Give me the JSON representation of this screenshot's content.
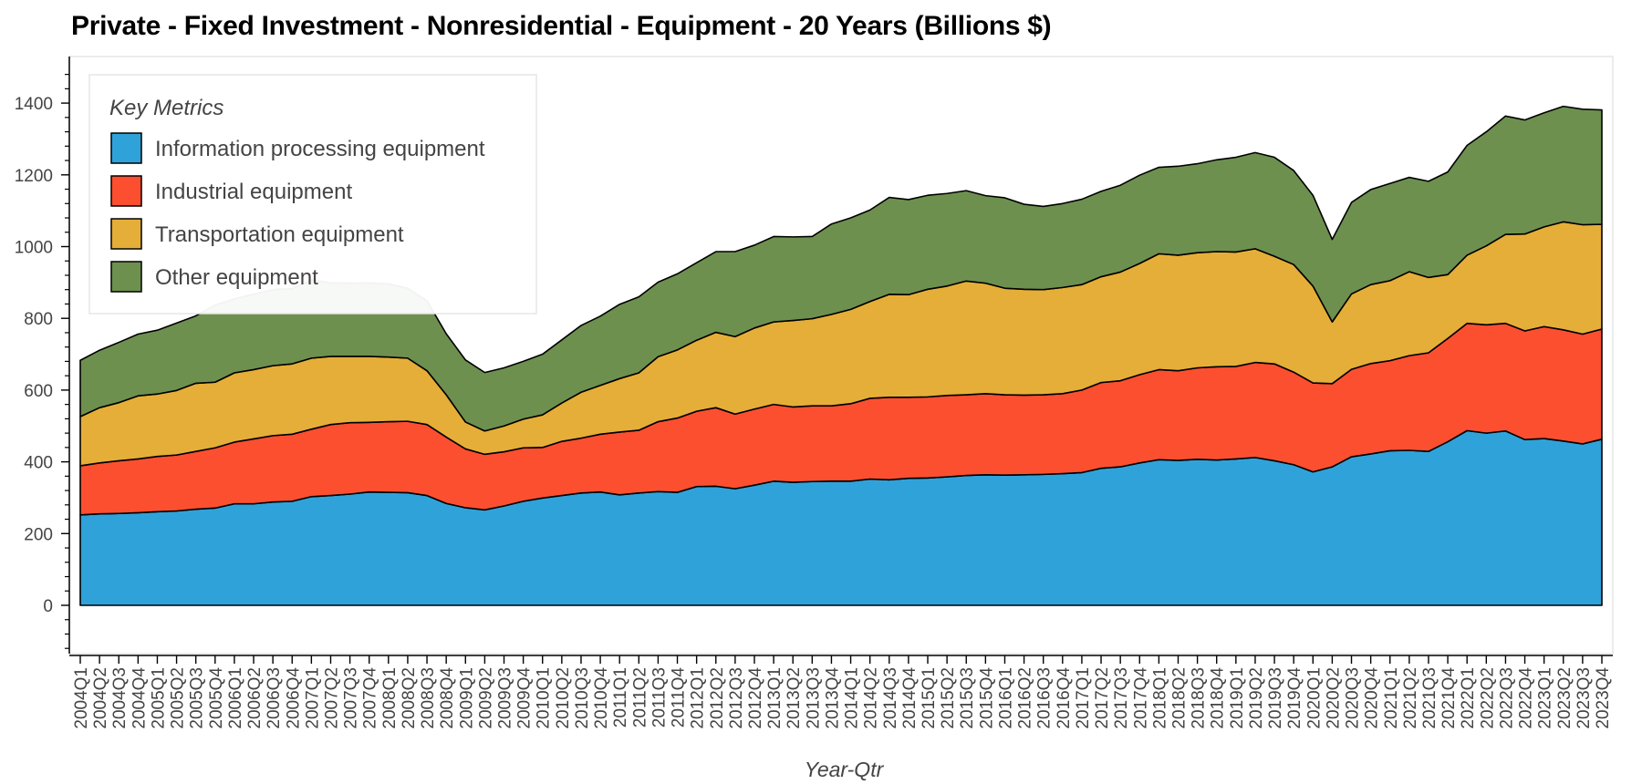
{
  "chart_data": {
    "type": "area",
    "stacked": true,
    "title": "Private - Fixed Investment - Nonresidential - Equipment - 20 Years (Billions $)",
    "xlabel": "Year-Qtr",
    "ylabel": "",
    "ylim": [
      -140,
      1520
    ],
    "yticks": [
      0,
      200,
      400,
      600,
      800,
      1000,
      1200,
      1400
    ],
    "grid": false,
    "legend": {
      "title": "Key Metrics",
      "placement": "top-left"
    },
    "x": [
      "2004Q1",
      "2004Q2",
      "2004Q3",
      "2004Q4",
      "2005Q1",
      "2005Q2",
      "2005Q3",
      "2005Q4",
      "2006Q1",
      "2006Q2",
      "2006Q3",
      "2006Q4",
      "2007Q1",
      "2007Q2",
      "2007Q3",
      "2007Q4",
      "2008Q1",
      "2008Q2",
      "2008Q3",
      "2008Q4",
      "2009Q1",
      "2009Q2",
      "2009Q3",
      "2009Q4",
      "2010Q1",
      "2010Q2",
      "2010Q3",
      "2010Q4",
      "2011Q1",
      "2011Q2",
      "2011Q3",
      "2011Q4",
      "2012Q1",
      "2012Q2",
      "2012Q3",
      "2012Q4",
      "2013Q1",
      "2013Q2",
      "2013Q3",
      "2013Q4",
      "2014Q1",
      "2014Q2",
      "2014Q3",
      "2014Q4",
      "2015Q1",
      "2015Q2",
      "2015Q3",
      "2015Q4",
      "2016Q1",
      "2016Q2",
      "2016Q3",
      "2016Q4",
      "2017Q1",
      "2017Q2",
      "2017Q3",
      "2017Q4",
      "2018Q1",
      "2018Q2",
      "2018Q3",
      "2018Q4",
      "2019Q1",
      "2019Q2",
      "2019Q3",
      "2019Q4",
      "2020Q1",
      "2020Q2",
      "2020Q3",
      "2020Q4",
      "2021Q1",
      "2021Q2",
      "2021Q3",
      "2021Q4",
      "2022Q1",
      "2022Q2",
      "2022Q3",
      "2022Q4",
      "2023Q1",
      "2023Q2",
      "2023Q3",
      "2023Q4"
    ],
    "series": [
      {
        "name": "Information processing equipment",
        "color": "#30a2da",
        "values": [
          252,
          255,
          256,
          258,
          261,
          263,
          268,
          271,
          283,
          283,
          288,
          290,
          303,
          306,
          310,
          316,
          315,
          314,
          306,
          284,
          272,
          266,
          277,
          290,
          299,
          306,
          313,
          316,
          308,
          313,
          317,
          315,
          331,
          332,
          325,
          335,
          346,
          343,
          345,
          346,
          346,
          352,
          350,
          354,
          355,
          358,
          362,
          364,
          363,
          364,
          365,
          367,
          370,
          382,
          386,
          397,
          406,
          404,
          407,
          405,
          408,
          412,
          403,
          392,
          372,
          386,
          414,
          422,
          431,
          432,
          429,
          456,
          487,
          480,
          486,
          462,
          465,
          458,
          450,
          463
        ]
      },
      {
        "name": "Industrial equipment",
        "color": "#fc4f30",
        "values": [
          137,
          142,
          147,
          150,
          154,
          156,
          161,
          168,
          172,
          181,
          185,
          187,
          188,
          198,
          199,
          194,
          197,
          199,
          198,
          185,
          164,
          155,
          151,
          149,
          141,
          151,
          153,
          161,
          175,
          175,
          195,
          207,
          210,
          219,
          208,
          212,
          214,
          210,
          211,
          210,
          216,
          225,
          230,
          226,
          226,
          227,
          225,
          226,
          224,
          222,
          222,
          223,
          230,
          239,
          240,
          246,
          251,
          250,
          255,
          260,
          258,
          265,
          270,
          258,
          248,
          232,
          244,
          252,
          251,
          264,
          275,
          288,
          299,
          302,
          300,
          303,
          312,
          310,
          306,
          307
        ]
      },
      {
        "name": "Transportation equipment",
        "color": "#e5ae38",
        "values": [
          137,
          154,
          162,
          176,
          174,
          180,
          190,
          183,
          193,
          193,
          195,
          196,
          198,
          190,
          185,
          184,
          180,
          176,
          150,
          118,
          75,
          65,
          72,
          80,
          91,
          107,
          128,
          136,
          149,
          160,
          181,
          190,
          198,
          210,
          216,
          226,
          230,
          241,
          243,
          255,
          263,
          270,
          287,
          286,
          300,
          305,
          317,
          308,
          297,
          295,
          293,
          296,
          294,
          295,
          303,
          310,
          323,
          322,
          321,
          321,
          319,
          317,
          300,
          300,
          270,
          172,
          210,
          220,
          223,
          234,
          210,
          178,
          190,
          220,
          248,
          270,
          278,
          301,
          305,
          292
        ]
      },
      {
        "name": "Other equipment",
        "color": "#6d904f",
        "values": [
          157,
          160,
          168,
          172,
          178,
          188,
          188,
          215,
          206,
          210,
          212,
          210,
          218,
          205,
          204,
          205,
          204,
          195,
          195,
          170,
          173,
          163,
          162,
          161,
          169,
          176,
          186,
          193,
          207,
          212,
          208,
          212,
          216,
          225,
          237,
          231,
          238,
          233,
          229,
          252,
          255,
          255,
          270,
          265,
          262,
          258,
          252,
          244,
          252,
          237,
          232,
          234,
          238,
          238,
          242,
          246,
          241,
          248,
          248,
          256,
          264,
          268,
          276,
          262,
          253,
          230,
          255,
          265,
          271,
          263,
          268,
          286,
          306,
          318,
          330,
          318,
          318,
          322,
          322,
          319
        ]
      }
    ]
  }
}
